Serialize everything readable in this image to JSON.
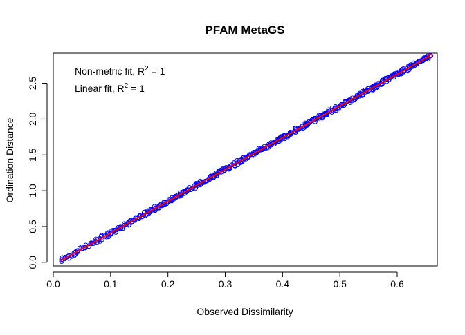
{
  "chart_data": {
    "type": "scatter",
    "title": "PFAM MetaGS",
    "xlabel": "Observed Dissimilarity",
    "ylabel": "Ordination Distance",
    "xlim": [
      0.0,
      0.67
    ],
    "ylim": [
      -0.05,
      2.92
    ],
    "x_ticks": [
      0.0,
      0.1,
      0.2,
      0.3,
      0.4,
      0.5,
      0.6
    ],
    "x_tick_labels": [
      "0.0",
      "0.1",
      "0.2",
      "0.3",
      "0.4",
      "0.5",
      "0.6"
    ],
    "y_ticks": [
      0.0,
      0.5,
      1.0,
      1.5,
      2.0,
      2.5
    ],
    "y_tick_labels": [
      "0.0",
      "0.5",
      "1.0",
      "1.5",
      "2.0",
      "2.5"
    ],
    "grid": false,
    "legend_position": "top-left",
    "annotations": [
      {
        "prefix": "Non-metric fit, R",
        "sup": "2",
        "suffix": " = 1"
      },
      {
        "prefix": "Linear fit, R",
        "sup": "2",
        "suffix": " = 1"
      }
    ],
    "points": {
      "marker": "open-circle",
      "color": "#0000ff",
      "x_range": [
        0.012,
        0.657
      ],
      "y_range": [
        0.02,
        2.88
      ],
      "relation": "y ≈ 4.38 × x",
      "end_point": {
        "x": 0.657,
        "y": 2.88,
        "color": "#ff0000"
      }
    },
    "fit_line": {
      "color": "#ff0000",
      "x": [
        0.012,
        0.657
      ],
      "y": [
        0.02,
        2.88
      ]
    }
  }
}
